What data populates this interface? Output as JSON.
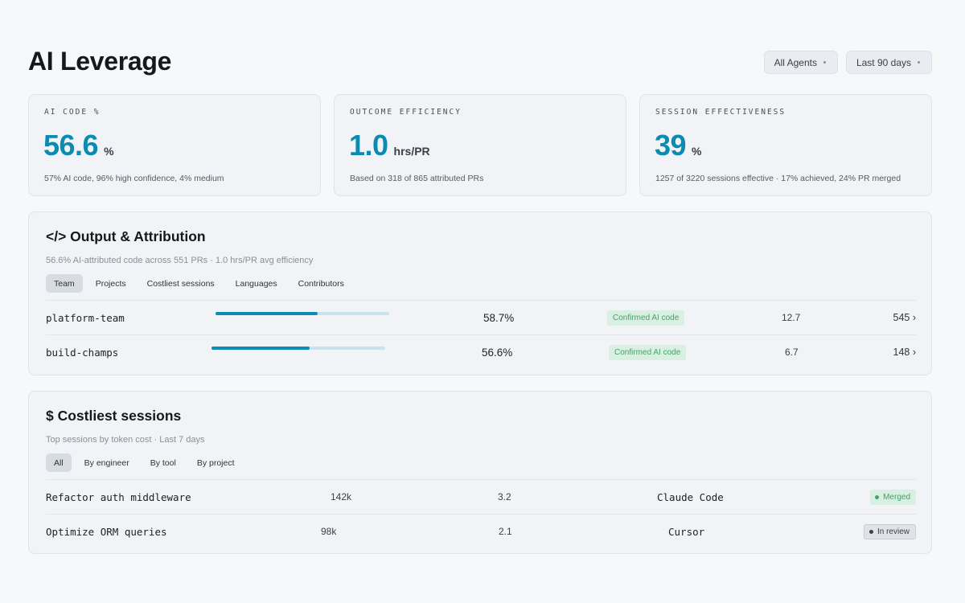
{
  "page": {
    "title": "AI Leverage"
  },
  "filters": [
    {
      "label": "All Agents"
    },
    {
      "label": "Last 90 days"
    }
  ],
  "kpis": [
    {
      "label": "AI CODE %",
      "value": "56.6",
      "unit": "%",
      "note": "57% AI code, 96% high confidence, 4% medium"
    },
    {
      "label": "OUTCOME EFFICIENCY",
      "value": "1.0",
      "unit": "hrs/PR",
      "note": "Based on 318 of 865 attributed PRs"
    },
    {
      "label": "SESSION EFFECTIVENESS",
      "value": "39",
      "unit": "%",
      "note": "1257 of 3220 sessions effective · 17% achieved, 24% PR merged"
    }
  ],
  "output": {
    "title": "</> Output & Attribution",
    "subtitle": "56.6% AI-attributed code across 551 PRs · 1.0 hrs/PR avg efficiency",
    "tabs": [
      "Team",
      "Projects",
      "Costliest sessions",
      "Languages",
      "Contributors"
    ],
    "active_tab": "Team",
    "rows": [
      {
        "name": "platform-team",
        "fill": 0.59,
        "pct": "58.7%",
        "badge": "Confirmed AI code",
        "metric": "12.7",
        "count": "545 ›"
      },
      {
        "name": "build-champs",
        "fill": 0.566,
        "pct": "56.6%",
        "badge": "Confirmed AI code",
        "metric": "6.7",
        "count": "148 ›"
      }
    ]
  },
  "sessions": {
    "title": "$ Costliest sessions",
    "subtitle": "Top sessions by token cost · Last 7 days",
    "tabs": [
      "All",
      "By engineer",
      "By tool",
      "By project"
    ],
    "active_tab": "All",
    "rows": [
      {
        "name": "Refactor auth middleware",
        "tokens": "142k",
        "cost": "3.2",
        "tool": "Claude Code",
        "status": "Merged",
        "status_kind": "merged"
      },
      {
        "name": "Optimize ORM queries",
        "tokens": "98k",
        "cost": "2.1",
        "tool": "Cursor",
        "status": "In review",
        "status_kind": "review"
      }
    ]
  },
  "colors": {
    "accent": "#0a8cb2",
    "success": "#43a36a"
  }
}
